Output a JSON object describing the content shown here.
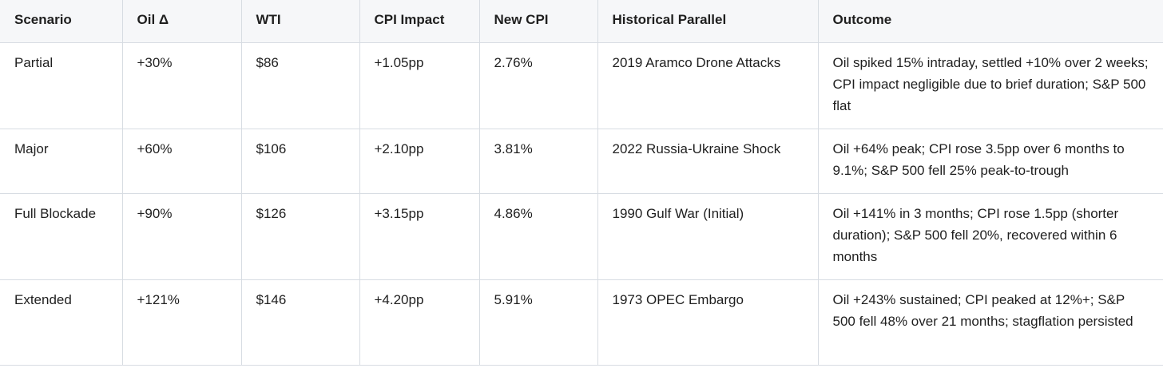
{
  "table": {
    "headers": [
      "Scenario",
      "Oil Δ",
      "WTI",
      "CPI Impact",
      "New CPI",
      "Historical Parallel",
      "Outcome"
    ],
    "rows": [
      [
        "Partial",
        "+30%",
        "$86",
        "+1.05pp",
        "2.76%",
        "2019 Aramco Drone Attacks",
        "Oil spiked 15% intraday, settled +10% over 2 weeks; CPI impact negligible due to brief duration; S&P 500 flat"
      ],
      [
        "Major",
        "+60%",
        "$106",
        "+2.10pp",
        "3.81%",
        "2022 Russia-Ukraine Shock",
        "Oil +64% peak; CPI rose 3.5pp over 6 months to 9.1%; S&P 500 fell 25% peak-to-trough"
      ],
      [
        "Full Blockade",
        "+90%",
        "$126",
        "+3.15pp",
        "4.86%",
        "1990 Gulf War (Initial)",
        "Oil +141% in 3 months; CPI rose 1.5pp (shorter duration); S&P 500 fell 20%, recovered within 6 months"
      ],
      [
        "Extended",
        "+121%",
        "$146",
        "+4.20pp",
        "5.91%",
        "1973 OPEC Embargo",
        "Oil +243% sustained; CPI peaked at 12%+; S&P 500 fell 48% over 21 months; stagflation persisted"
      ]
    ]
  }
}
